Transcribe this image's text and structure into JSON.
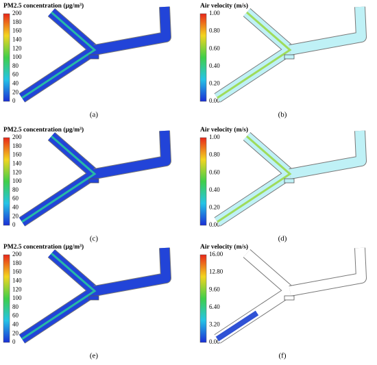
{
  "panels": [
    {
      "legend_title": "PM2.5 concentration (μg/m³)",
      "ticks": [
        "200",
        "180",
        "160",
        "140",
        "120",
        "100",
        "80",
        "60",
        "40",
        "20",
        "0"
      ],
      "caption": "(a)"
    },
    {
      "legend_title": "Air velocity  (m/s)",
      "ticks": [
        "1.00",
        "0.80",
        "0.60",
        "0.40",
        "0.20",
        "0.00"
      ],
      "caption": "(b)"
    },
    {
      "legend_title": "PM2.5 concentration (μg/m³)",
      "ticks": [
        "200",
        "180",
        "160",
        "140",
        "120",
        "100",
        "80",
        "60",
        "40",
        "20",
        "0"
      ],
      "caption": "(c)"
    },
    {
      "legend_title": "Air velocity  (m/s)",
      "ticks": [
        "1.00",
        "0.80",
        "0.60",
        "0.40",
        "0.20",
        "0.00"
      ],
      "caption": "(d)"
    },
    {
      "legend_title": "PM2.5 concentration (μg/m³)",
      "ticks": [
        "200",
        "180",
        "160",
        "140",
        "120",
        "100",
        "80",
        "60",
        "40",
        "20",
        "0"
      ],
      "caption": "(e)"
    },
    {
      "legend_title": "Air velocity  (m/s)",
      "ticks": [
        "16.00",
        "12.80",
        "9.60",
        "6.40",
        "3.20",
        "0.00"
      ],
      "caption": "(f)"
    }
  ]
}
